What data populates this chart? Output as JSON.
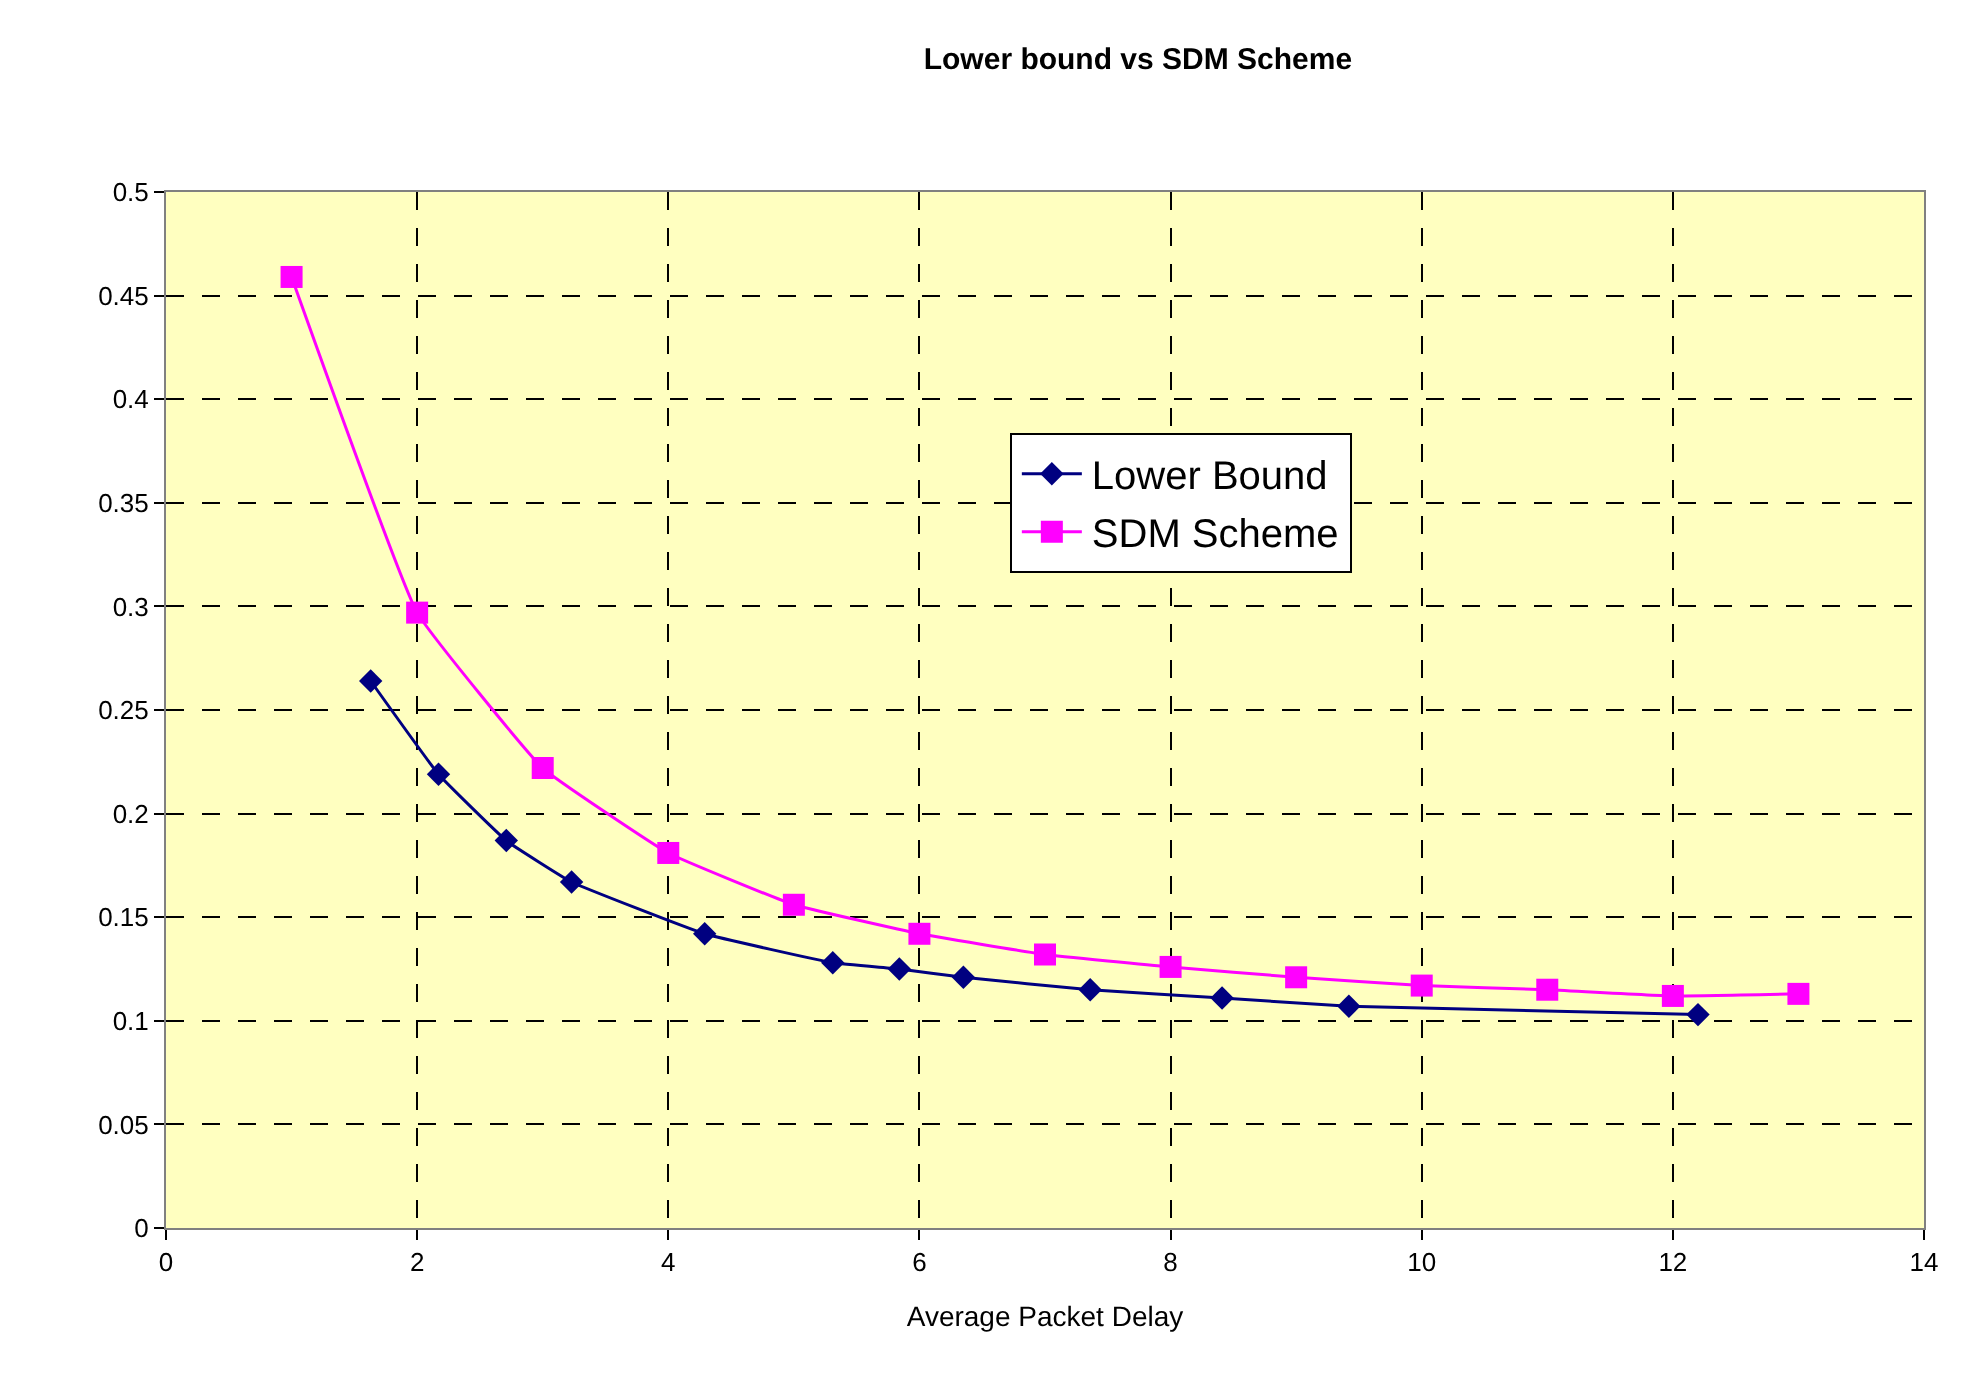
{
  "chart_data": {
    "type": "line",
    "title": "Lower bound vs SDM Scheme",
    "xlabel": "Average Packet Delay",
    "xlim": [
      0,
      14
    ],
    "xticks": [
      0,
      2,
      4,
      6,
      8,
      10,
      12,
      14
    ],
    "ylim": [
      0,
      0.5
    ],
    "yticks": [
      0,
      0.05,
      0.1,
      0.15,
      0.2,
      0.25,
      0.3,
      0.35,
      0.4,
      0.45,
      0.5
    ],
    "grid": true,
    "legend": "right",
    "series": [
      {
        "name": "Lower Bound",
        "color": "#000080",
        "marker": "diamond",
        "x": [
          1.63,
          2.17,
          2.71,
          3.23,
          4.29,
          5.31,
          5.84,
          6.35,
          7.36,
          8.41,
          9.42,
          12.2
        ],
        "values": [
          0.264,
          0.219,
          0.187,
          0.167,
          0.142,
          0.128,
          0.125,
          0.121,
          0.115,
          0.111,
          0.107,
          0.103
        ]
      },
      {
        "name": "SDM Scheme",
        "color": "#ff00ff",
        "marker": "square",
        "x": [
          1,
          2,
          3,
          4,
          5,
          6,
          7,
          8,
          9,
          10,
          11,
          12,
          13
        ],
        "values": [
          0.459,
          0.297,
          0.222,
          0.181,
          0.156,
          0.142,
          0.132,
          0.126,
          0.121,
          0.117,
          0.115,
          0.112,
          0.113
        ]
      }
    ]
  }
}
